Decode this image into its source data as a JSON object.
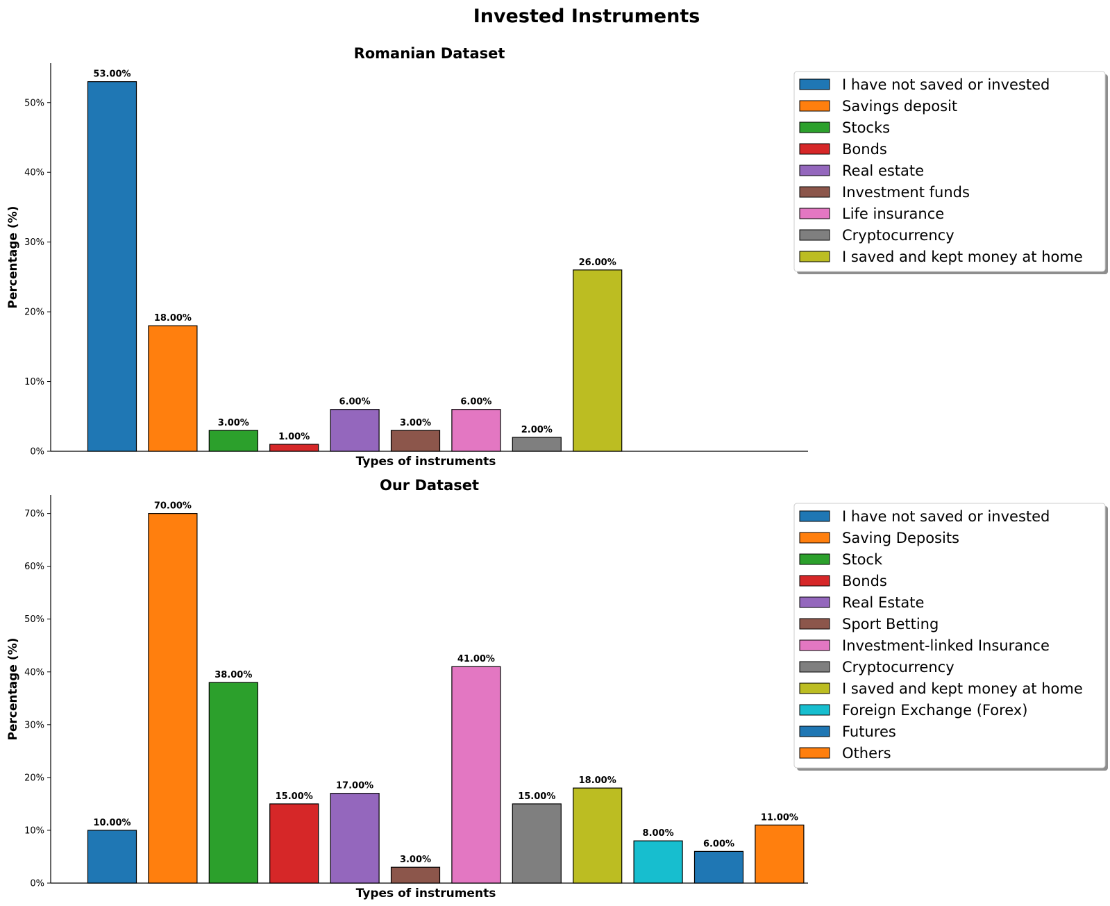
{
  "figure_title": "Invested Instruments",
  "colors": {
    "blue": "#1f77b4",
    "orange": "#ff7f0e",
    "green": "#2ca02c",
    "red": "#d62728",
    "purple": "#9467bd",
    "brown": "#8c564b",
    "pink": "#e377c2",
    "gray": "#7f7f7f",
    "olive": "#bcbd22",
    "cyan": "#17becf"
  },
  "chart_data": [
    {
      "type": "bar",
      "title": "Romanian Dataset",
      "xlabel": "Types of instruments",
      "ylabel": "Percentage (%)",
      "ylim": [
        0,
        55.65
      ],
      "yticks": [
        0,
        10,
        20,
        30,
        40,
        50
      ],
      "ytick_labels": [
        "0%",
        "10%",
        "20%",
        "30%",
        "40%",
        "50%"
      ],
      "legend_position": "outside-right-top",
      "grid": false,
      "categories": [
        "I have not saved or invested",
        "Savings deposit",
        "Stocks",
        "Bonds",
        "Real estate",
        "Investment funds",
        "Life insurance",
        "Cryptocurrency",
        "I saved and kept money at home"
      ],
      "values": [
        53,
        18,
        3,
        1,
        6,
        3,
        6,
        2,
        26
      ],
      "value_labels": [
        "53.00%",
        "18.00%",
        "3.00%",
        "1.00%",
        "6.00%",
        "3.00%",
        "6.00%",
        "2.00%",
        "26.00%"
      ],
      "bar_colors": [
        "#1f77b4",
        "#ff7f0e",
        "#2ca02c",
        "#d62728",
        "#9467bd",
        "#8c564b",
        "#e377c2",
        "#7f7f7f",
        "#bcbd22"
      ]
    },
    {
      "type": "bar",
      "title": "Our Dataset",
      "xlabel": "Types of instruments",
      "ylabel": "Percentage (%)",
      "ylim": [
        0,
        73.5
      ],
      "yticks": [
        0,
        10,
        20,
        30,
        40,
        50,
        60,
        70
      ],
      "ytick_labels": [
        "0%",
        "10%",
        "20%",
        "30%",
        "40%",
        "50%",
        "60%",
        "70%"
      ],
      "legend_position": "outside-right-top",
      "grid": false,
      "categories": [
        "I have not saved or invested",
        "Saving Deposits",
        "Stock",
        "Bonds",
        "Real Estate",
        "Sport Betting",
        "Investment-linked Insurance",
        "Cryptocurrency",
        "I saved and kept money at home",
        "Foreign Exchange (Forex)",
        "Futures",
        "Others"
      ],
      "values": [
        10,
        70,
        38,
        15,
        17,
        3,
        41,
        15,
        18,
        8,
        6,
        11
      ],
      "value_labels": [
        "10.00%",
        "70.00%",
        "38.00%",
        "15.00%",
        "17.00%",
        "3.00%",
        "41.00%",
        "15.00%",
        "18.00%",
        "8.00%",
        "6.00%",
        "11.00%"
      ],
      "bar_colors": [
        "#1f77b4",
        "#ff7f0e",
        "#2ca02c",
        "#d62728",
        "#9467bd",
        "#8c564b",
        "#e377c2",
        "#7f7f7f",
        "#bcbd22",
        "#17becf",
        "#1f77b4",
        "#ff7f0e"
      ]
    }
  ]
}
